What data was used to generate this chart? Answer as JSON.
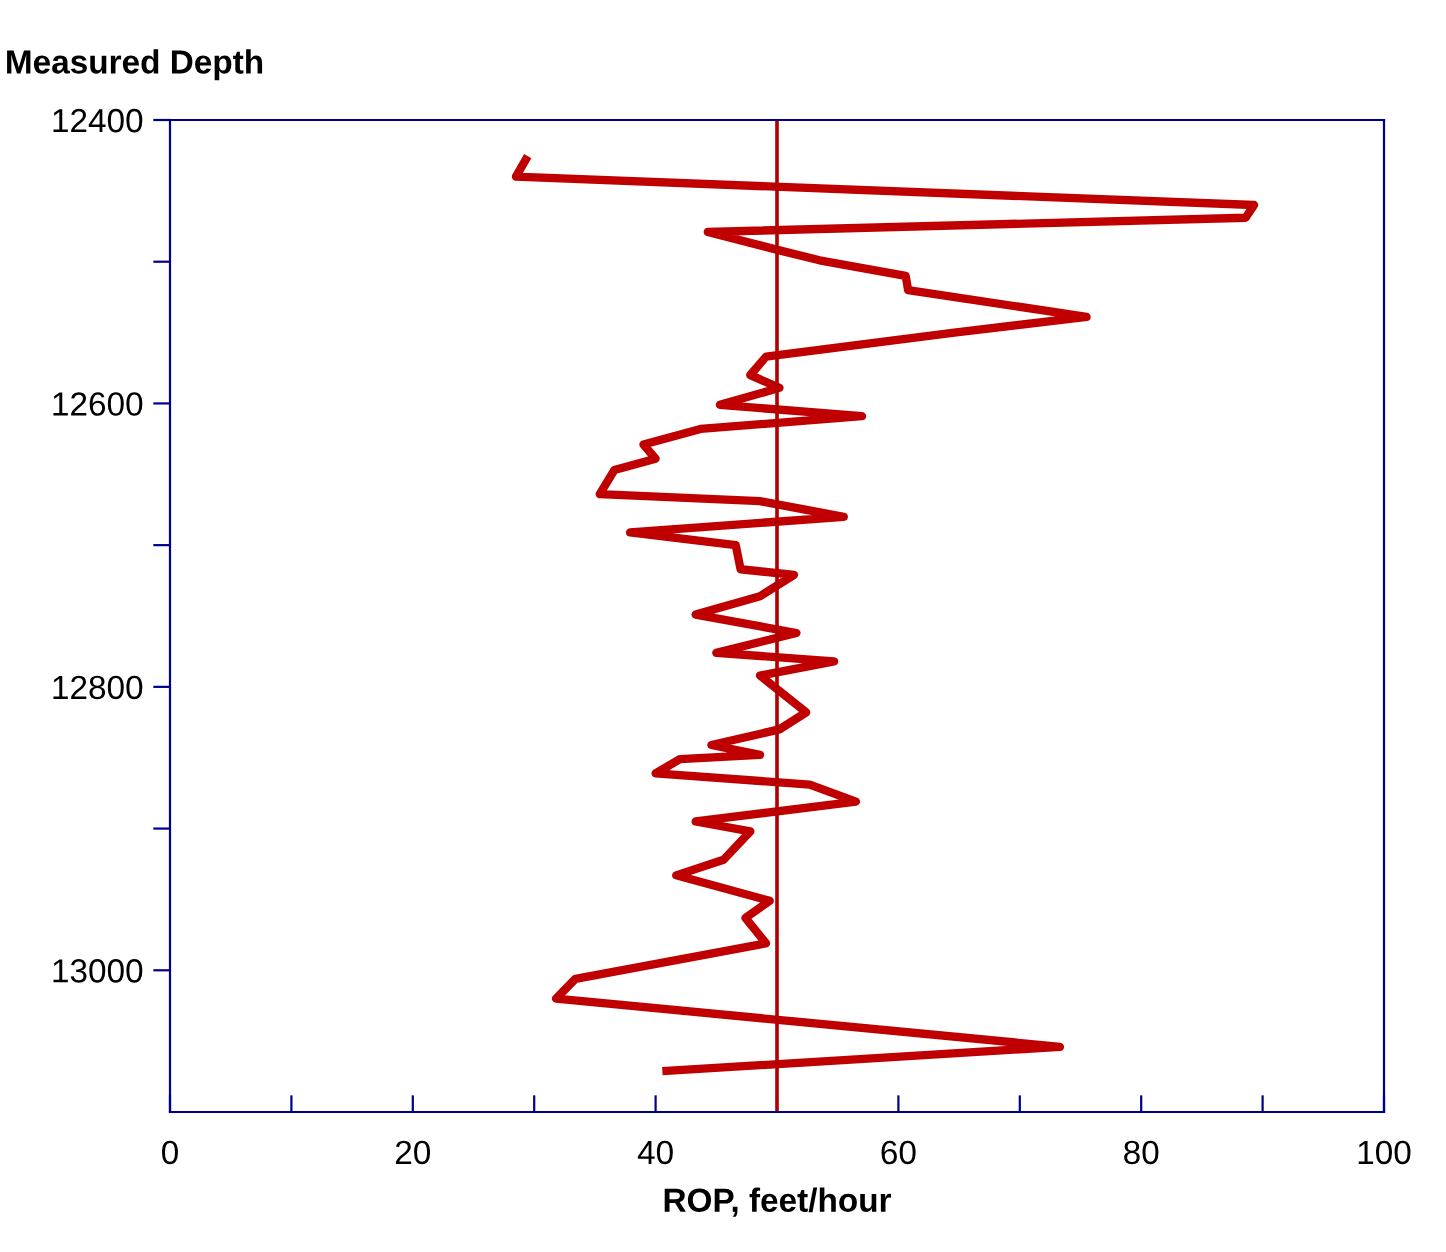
{
  "chart_data": {
    "type": "line",
    "xlabel": "ROP, feet/hour",
    "ylabel": "Measured Depth",
    "xlim": [
      0,
      100
    ],
    "xticks": [
      0,
      {
        "value": 10,
        "label": null
      },
      20,
      {
        "value": 30,
        "label": null
      },
      40,
      {
        "value": 50,
        "label": null
      },
      60,
      {
        "value": 70,
        "label": null
      },
      80,
      {
        "value": 90,
        "label": null
      },
      100
    ],
    "ylim": [
      13100,
      12400
    ],
    "yticks": [
      12400,
      {
        "value": 12500,
        "label": null
      },
      12600,
      {
        "value": 12700,
        "label": null
      },
      12800,
      {
        "value": 12900,
        "label": null
      },
      13000
    ],
    "grid": false,
    "marker": "none",
    "line_style": "solid",
    "ref_lines": [
      {
        "axis": "x",
        "value": 50,
        "color": "#b00000"
      }
    ],
    "series": [
      {
        "color": "#c00000",
        "x": [
          29.3,
          28.5,
          89.3,
          88.6,
          44.3,
          50.2,
          53.5,
          60.6,
          60.8,
          75.5,
          64.6,
          49.1,
          47.8,
          50.2,
          45.3,
          57.0,
          43.7,
          39.0,
          40.0,
          36.6,
          35.4,
          48.6,
          55.5,
          37.9,
          46.6,
          47.0,
          51.4,
          48.6,
          43.3,
          51.6,
          45.0,
          54.7,
          48.6,
          52.4,
          50.2,
          44.6,
          48.6,
          42.0,
          40.0,
          52.7,
          56.5,
          43.3,
          47.8,
          45.6,
          41.7,
          49.4,
          47.4,
          49.1,
          33.4,
          31.8,
          73.3,
          40.9
        ],
        "values": [
          12428,
          12440,
          12460,
          12469,
          12479,
          12492,
          12499,
          12510,
          12520,
          12539,
          12550,
          12567,
          12580,
          12589,
          12601,
          12609,
          12618,
          12629,
          12639,
          12647,
          12664,
          12669,
          12680,
          12691,
          12700,
          12717,
          12721,
          12736,
          12749,
          12762,
          12776,
          12782,
          12792,
          12818,
          12830,
          12841,
          12848,
          12851,
          12861,
          12869,
          12881,
          12895,
          12902,
          12922,
          12933,
          12951,
          12963,
          12981,
          13006,
          13020,
          13054,
          13071
        ]
      }
    ]
  }
}
